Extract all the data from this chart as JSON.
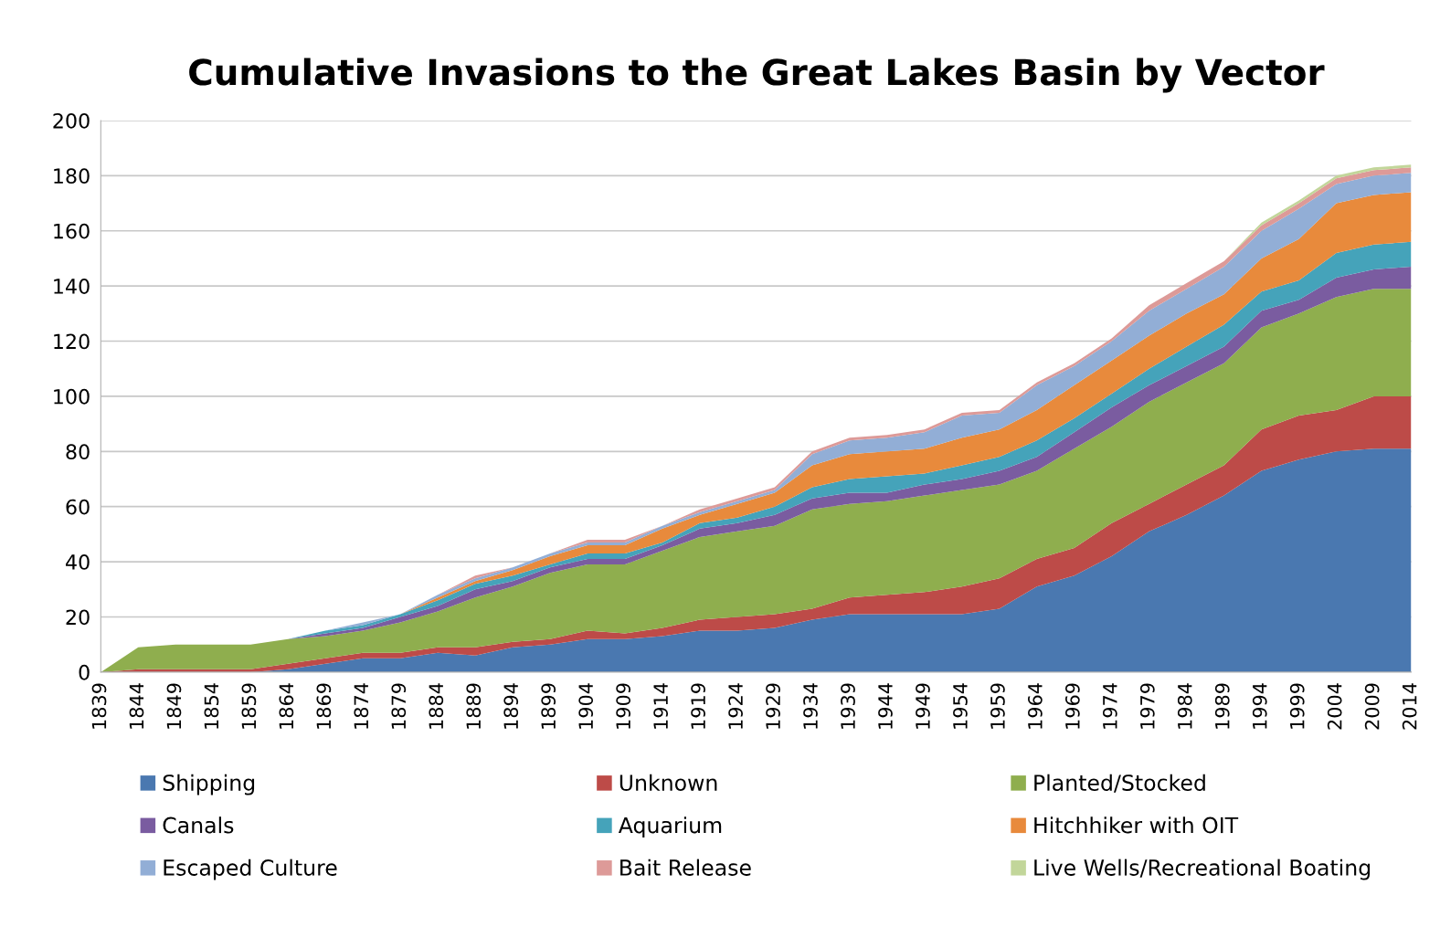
{
  "chart_data": {
    "type": "area",
    "stacked": true,
    "title": "Cumulative Invasions to the Great Lakes Basin by Vector",
    "x": [
      1839,
      1844,
      1849,
      1854,
      1859,
      1864,
      1869,
      1874,
      1879,
      1884,
      1889,
      1894,
      1899,
      1904,
      1909,
      1914,
      1919,
      1924,
      1929,
      1934,
      1939,
      1944,
      1949,
      1954,
      1959,
      1964,
      1969,
      1974,
      1979,
      1984,
      1989,
      1994,
      1999,
      2004,
      2009,
      2014
    ],
    "xlim": [
      1839,
      2014
    ],
    "xticks": [
      1839,
      1844,
      1849,
      1854,
      1859,
      1864,
      1869,
      1874,
      1879,
      1884,
      1889,
      1894,
      1899,
      1904,
      1909,
      1914,
      1919,
      1924,
      1929,
      1934,
      1939,
      1944,
      1949,
      1954,
      1959,
      1964,
      1969,
      1974,
      1979,
      1984,
      1989,
      1994,
      1999,
      2004,
      2009,
      2014
    ],
    "ylim": [
      0,
      200
    ],
    "yticks": [
      0,
      20,
      40,
      60,
      80,
      100,
      120,
      140,
      160,
      180,
      200
    ],
    "grid": "y",
    "legend": "bottom",
    "series": [
      {
        "name": "Shipping",
        "color": "#4a78b0",
        "values": [
          0,
          0,
          0,
          0,
          0,
          1,
          3,
          5,
          5,
          7,
          6,
          9,
          10,
          12,
          12,
          13,
          15,
          15,
          16,
          19,
          21,
          21,
          21,
          21,
          23,
          31,
          35,
          42,
          51,
          57,
          64,
          73,
          77,
          80,
          81,
          81
        ]
      },
      {
        "name": "Unknown",
        "color": "#bd4b48",
        "values": [
          0,
          1,
          1,
          1,
          1,
          2,
          2,
          2,
          2,
          2,
          3,
          2,
          2,
          3,
          2,
          3,
          4,
          5,
          5,
          4,
          6,
          7,
          8,
          10,
          11,
          10,
          10,
          12,
          10,
          11,
          11,
          15,
          16,
          15,
          19,
          19
        ]
      },
      {
        "name": "Planted/Stocked",
        "color": "#8fae4e",
        "values": [
          0,
          8,
          9,
          9,
          9,
          9,
          8,
          8,
          11,
          13,
          18,
          20,
          24,
          24,
          25,
          28,
          30,
          31,
          32,
          36,
          34,
          34,
          35,
          35,
          34,
          32,
          36,
          35,
          37,
          37,
          37,
          37,
          37,
          41,
          39,
          39
        ]
      },
      {
        "name": "Canals",
        "color": "#7a5ca0",
        "values": [
          0,
          0,
          0,
          0,
          0,
          0,
          1,
          1,
          2,
          2,
          3,
          2,
          2,
          2,
          2,
          2,
          3,
          3,
          4,
          4,
          4,
          3,
          4,
          4,
          5,
          5,
          6,
          7,
          6,
          6,
          6,
          6,
          5,
          7,
          7,
          8
        ]
      },
      {
        "name": "Aquarium",
        "color": "#45a3ba",
        "values": [
          0,
          0,
          0,
          0,
          0,
          0,
          1,
          1,
          1,
          2,
          2,
          2,
          1,
          2,
          2,
          1,
          2,
          2,
          3,
          4,
          5,
          6,
          4,
          5,
          5,
          6,
          5,
          5,
          6,
          7,
          8,
          7,
          7,
          9,
          9,
          9
        ]
      },
      {
        "name": "Hitchhiker with OIT",
        "color": "#e88a3c",
        "values": [
          0,
          0,
          0,
          0,
          0,
          0,
          0,
          0,
          0,
          1,
          1,
          2,
          3,
          3,
          3,
          5,
          3,
          5,
          5,
          8,
          9,
          9,
          9,
          10,
          10,
          11,
          12,
          12,
          12,
          12,
          11,
          12,
          15,
          18,
          18,
          18
        ]
      },
      {
        "name": "Escaped Culture",
        "color": "#92aed6",
        "values": [
          0,
          0,
          0,
          0,
          0,
          0,
          0,
          1,
          0,
          1,
          1,
          1,
          1,
          1,
          1,
          1,
          1,
          1,
          1,
          4,
          5,
          5,
          6,
          8,
          6,
          9,
          7,
          7,
          9,
          9,
          10,
          10,
          11,
          7,
          7,
          7
        ]
      },
      {
        "name": "Bait Release",
        "color": "#dd9a98",
        "values": [
          0,
          0,
          0,
          0,
          0,
          0,
          0,
          0,
          0,
          0,
          1,
          0,
          0,
          1,
          1,
          0,
          1,
          1,
          1,
          1,
          1,
          1,
          1,
          1,
          1,
          1,
          1,
          1,
          2,
          2,
          2,
          2,
          2,
          2,
          2,
          2
        ]
      },
      {
        "name": "Live Wells/Recreational Boating",
        "color": "#c2d69a",
        "values": [
          0,
          0,
          0,
          0,
          0,
          0,
          0,
          0,
          0,
          0,
          0,
          0,
          0,
          0,
          0,
          0,
          0,
          0,
          0,
          0,
          0,
          0,
          0,
          0,
          0,
          0,
          0,
          0,
          0,
          0,
          0,
          1,
          1,
          1,
          1,
          1
        ]
      }
    ]
  }
}
